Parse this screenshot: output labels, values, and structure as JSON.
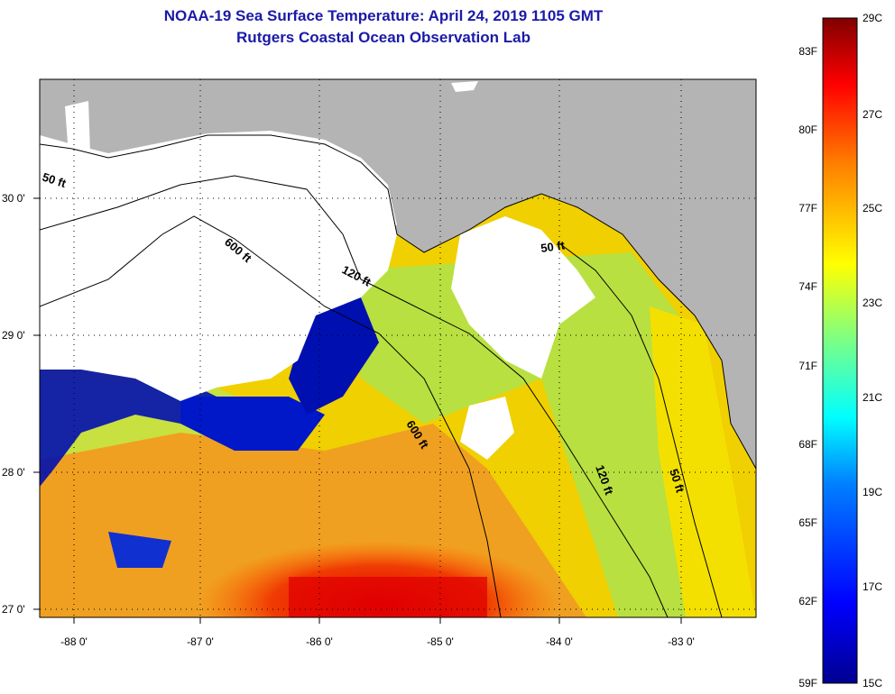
{
  "header": {
    "title": "NOAA-19 Sea Surface Temperature:  April 24, 2019 1105 GMT",
    "subtitle": "Rutgers Coastal Ocean Observation Lab"
  },
  "map": {
    "lon_ticks": [
      "-88 0'",
      "-87 0'",
      "-86 0'",
      "-85 0'",
      "-84 0'",
      "-83 0'"
    ],
    "lat_ticks": [
      "30 0'",
      "29 0'",
      "28 0'",
      "27 0'"
    ],
    "contours": [
      "50 ft",
      "600 ft",
      "120 ft",
      "50 ft",
      "600 ft",
      "120 ft",
      "50 ft"
    ],
    "colors": {
      "land": "#b4b4b4",
      "no_data": "#ffffff",
      "coast": "#000000"
    }
  },
  "colorbar": {
    "fahrenheit": [
      "83F",
      "80F",
      "77F",
      "74F",
      "71F",
      "68F",
      "65F",
      "62F",
      "59F"
    ],
    "celsius": [
      "29C",
      "27C",
      "25C",
      "23C",
      "21C",
      "19C",
      "17C",
      "15C"
    ],
    "colors": [
      "#000090",
      "#0000ff",
      "#0080ff",
      "#00ffff",
      "#80ff80",
      "#ffff00",
      "#ff8000",
      "#ff0000",
      "#800000"
    ]
  }
}
